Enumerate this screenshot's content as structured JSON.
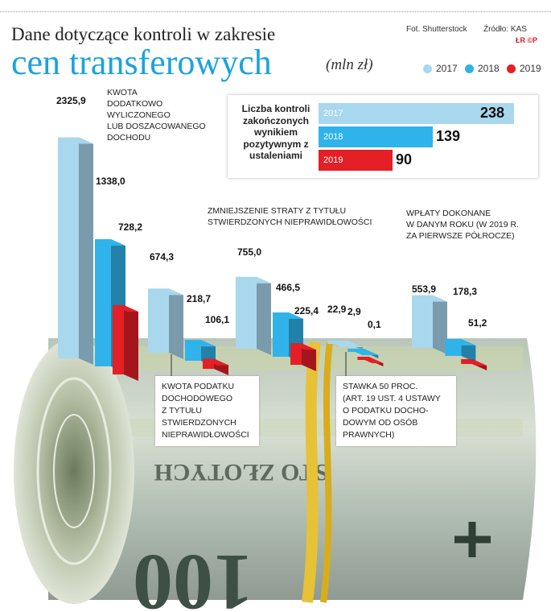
{
  "header": {
    "title_line1": "Dane dotyczące kontroli w zakresie",
    "title_line2": "cen transferowych",
    "unit": "(mln zł)",
    "photo_credit": "Fot. Shutterstock",
    "source": "Źródło: KAS",
    "logo_text": "ŁR ©P"
  },
  "colors": {
    "y2017": "#a9d7ee",
    "y2018": "#2fb3ea",
    "y2019": "#e41f26"
  },
  "legend": [
    {
      "label": "2017",
      "color": "#a9d7ee"
    },
    {
      "label": "2018",
      "color": "#2fb3ea"
    },
    {
      "label": "2019",
      "color": "#e41f26"
    }
  ],
  "chart_data": [
    {
      "type": "bar",
      "categories": [
        "Kwota dodatkowo wyliczonego lub doszacowanego dochodu",
        "Kwota podatku dochodowego z tytułu stwierdzonych nieprawidłowości",
        "Zmniejszenie straty z tytułu stwierdzonych nieprawidłowości",
        "Stawka 50 proc. (art. 19 ust. 4 ustawy o podatku dochodowym od osób prawnych)",
        "Wpłaty dokonane w danym roku (w 2019 r. za pierwsze półrocze)"
      ],
      "series": [
        {
          "name": "2017",
          "values": [
            2325.9,
            674.3,
            755.0,
            22.9,
            553.9
          ],
          "labels": [
            "2325,9",
            "674,3",
            "755,0",
            "22,9",
            "553,9"
          ]
        },
        {
          "name": "2018",
          "values": [
            1338.0,
            218.7,
            466.5,
            2.9,
            178.3
          ],
          "labels": [
            "1338,0",
            "218,7",
            "466,5",
            "2,9",
            "178,3"
          ]
        },
        {
          "name": "2019",
          "values": [
            728.2,
            106.1,
            225.4,
            0.1,
            51.2
          ],
          "labels": [
            "728,2",
            "106,1",
            "225,4",
            "0,1",
            "51,2"
          ]
        }
      ],
      "ylabel": "mln zł"
    },
    {
      "type": "bar",
      "title": "Liczba kontroli zakończonych wynikiem pozytywnym z ustaleniami",
      "categories": [
        "2017",
        "2018",
        "2019"
      ],
      "values": [
        238,
        139,
        90
      ]
    }
  ],
  "notes": {
    "g1": [
      "KWOTA",
      "DODATKOWO",
      "WYLICZONEGO",
      "LUB DOSZACOWANEGO",
      "DOCHODU"
    ],
    "g3": [
      "ZMNIEJSZENIE STRATY Z TYTUŁU",
      "STWIERDZONYCH NIEPRAWIDŁOWOŚCI"
    ],
    "g5": [
      "WPŁATY DOKONANE",
      "W DANYM ROKU (W 2019 R.",
      "ZA PIERWSZE PÓŁROCZE)"
    ]
  },
  "callouts": {
    "g2": [
      "KWOTA PODATKU",
      "DOCHODOWEGO",
      "Z TYTUŁU",
      "STWIERDZONYCH",
      "NIEPRAWIDŁOWOŚCI"
    ],
    "g4": [
      "STAWKA 50 PROC.",
      "(ART. 19 UST. 4 USTAWY",
      "O PODATKU DOCHO-",
      "DOWYM OD OSÓB",
      "PRAWNYCH)"
    ]
  },
  "inset": {
    "title": "Liczba kontroli zakończonych wynikiem pozytywnym z ustaleniami",
    "bars": [
      {
        "year": "2017",
        "value": "238"
      },
      {
        "year": "2018",
        "value": "139"
      },
      {
        "year": "2019",
        "value": "90"
      }
    ]
  },
  "banknote_text": {
    "denomination_words": "STO ZŁOTYCH",
    "denomination_digits": "100"
  }
}
